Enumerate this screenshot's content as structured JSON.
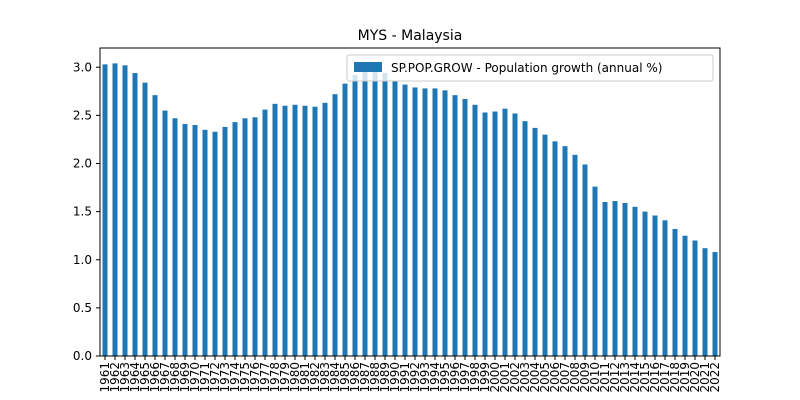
{
  "chart_data": {
    "type": "bar",
    "title": "MYS - Malaysia",
    "xlabel": "",
    "ylabel": "",
    "ylim": [
      0,
      3.2
    ],
    "yticks": [
      "0.0",
      "0.5",
      "1.0",
      "1.5",
      "2.0",
      "2.5",
      "3.0"
    ],
    "grid": false,
    "legend_position": "top-right",
    "series": [
      {
        "name": "SP.POP.GROW - Population growth (annual %)",
        "color": "#1f77b4",
        "values": [
          3.03,
          3.04,
          3.02,
          2.94,
          2.84,
          2.71,
          2.55,
          2.47,
          2.41,
          2.4,
          2.35,
          2.33,
          2.38,
          2.43,
          2.47,
          2.48,
          2.56,
          2.62,
          2.6,
          2.61,
          2.6,
          2.59,
          2.63,
          2.72,
          2.83,
          2.92,
          2.95,
          2.95,
          2.94,
          2.86,
          2.82,
          2.79,
          2.78,
          2.78,
          2.76,
          2.71,
          2.67,
          2.61,
          2.53,
          2.54,
          2.57,
          2.52,
          2.44,
          2.37,
          2.3,
          2.23,
          2.18,
          2.09,
          1.99,
          1.76,
          1.6,
          1.61,
          1.59,
          1.55,
          1.5,
          1.46,
          1.41,
          1.32,
          1.25,
          1.2,
          1.12,
          1.08
        ]
      }
    ],
    "categories": [
      "1961",
      "1962",
      "1963",
      "1964",
      "1965",
      "1966",
      "1967",
      "1968",
      "1969",
      "1970",
      "1971",
      "1972",
      "1973",
      "1974",
      "1975",
      "1976",
      "1977",
      "1978",
      "1979",
      "1980",
      "1981",
      "1982",
      "1983",
      "1984",
      "1985",
      "1986",
      "1987",
      "1988",
      "1989",
      "1990",
      "1991",
      "1992",
      "1993",
      "1994",
      "1995",
      "1996",
      "1997",
      "1998",
      "1999",
      "2000",
      "2001",
      "2002",
      "2003",
      "2004",
      "2005",
      "2006",
      "2007",
      "2008",
      "2009",
      "2010",
      "2011",
      "2012",
      "2013",
      "2014",
      "2015",
      "2016",
      "2017",
      "2018",
      "2019",
      "2020",
      "2021",
      "2022"
    ]
  }
}
